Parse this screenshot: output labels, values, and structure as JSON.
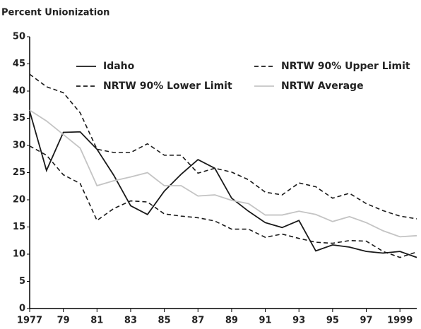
{
  "chart_data": {
    "type": "line",
    "y_label": "Percent Unionization",
    "x": [
      1977,
      1978,
      1979,
      1980,
      1981,
      1982,
      1983,
      1984,
      1985,
      1986,
      1987,
      1988,
      1989,
      1990,
      1991,
      1992,
      1993,
      1994,
      1995,
      1996,
      1997,
      1998,
      1999,
      2000
    ],
    "series": [
      {
        "name": "Idaho",
        "color": "#1a1a1a",
        "dashed": false,
        "values": [
          36.3,
          25.4,
          32.4,
          32.5,
          29.3,
          24.5,
          18.9,
          17.3,
          21.6,
          24.7,
          27.4,
          25.8,
          20.3,
          17.9,
          15.8,
          14.9,
          16.2,
          10.6,
          11.7,
          11.3,
          10.5,
          10.2,
          10.5,
          9.4
        ]
      },
      {
        "name": "NRTW 90% Upper Limit",
        "color": "#1a1a1a",
        "dashed": true,
        "values": [
          43.1,
          40.8,
          39.7,
          36.0,
          29.3,
          28.7,
          28.7,
          30.3,
          28.2,
          28.2,
          24.9,
          25.8,
          25.1,
          23.7,
          21.4,
          20.9,
          23.1,
          22.4,
          20.3,
          21.2,
          19.3,
          18.0,
          17.0,
          16.5
        ]
      },
      {
        "name": "NRTW 90% Lower Limit",
        "color": "#1a1a1a",
        "dashed": true,
        "values": [
          29.9,
          28.2,
          24.6,
          23.0,
          16.2,
          18.4,
          19.8,
          19.6,
          17.4,
          17.0,
          16.7,
          16.1,
          14.6,
          14.6,
          13.1,
          13.7,
          12.9,
          12.2,
          12.0,
          12.5,
          12.4,
          10.5,
          9.4,
          10.4
        ]
      },
      {
        "name": "NRTW Average",
        "color": "#c4c4c4",
        "dashed": false,
        "values": [
          36.5,
          34.5,
          32.0,
          29.5,
          22.6,
          23.5,
          24.2,
          25.0,
          22.6,
          22.6,
          20.7,
          20.9,
          19.9,
          19.3,
          17.2,
          17.2,
          17.9,
          17.3,
          16.0,
          16.9,
          15.8,
          14.3,
          13.2,
          13.4
        ]
      }
    ],
    "xlim": [
      1977,
      2000
    ],
    "xticks": [
      1977,
      {
        "value": 1979,
        "label": "79"
      },
      {
        "value": 1981,
        "label": "81"
      },
      {
        "value": 1983,
        "label": "83"
      },
      {
        "value": 1985,
        "label": "85"
      },
      {
        "value": 1987,
        "label": "87"
      },
      {
        "value": 1989,
        "label": "89"
      },
      {
        "value": 1991,
        "label": "91"
      },
      {
        "value": 1993,
        "label": "93"
      },
      {
        "value": 1995,
        "label": "95"
      },
      {
        "value": 1997,
        "label": "97"
      },
      1999
    ],
    "ylim": [
      0,
      50
    ],
    "yticks": [
      0,
      5,
      10,
      15,
      20,
      25,
      30,
      35,
      40,
      45,
      50
    ],
    "grid": false
  }
}
